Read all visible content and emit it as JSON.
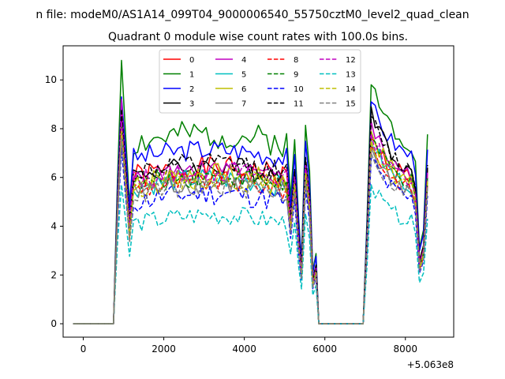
{
  "chart_data": {
    "type": "line",
    "suptitle": "n file: modeM0/AS1A14_099T04_9000006540_55750cztM0_level2_quad_clean",
    "title": "Quadrant 0 module wise count rates with 100.0s bins.",
    "xlabel": "",
    "ylabel": "",
    "x_offset_label": "+5.063e8",
    "xlim": [
      -500,
      9200
    ],
    "ylim": [
      -0.55,
      11.4
    ],
    "xticks": [
      0,
      2000,
      4000,
      6000,
      8000
    ],
    "xtick_labels": [
      "0",
      "2000",
      "4000",
      "6000",
      "8000"
    ],
    "yticks": [
      0,
      2,
      4,
      6,
      8,
      10
    ],
    "ytick_labels": [
      "0",
      "2",
      "4",
      "6",
      "8",
      "10"
    ],
    "grid": false,
    "legend_location": "upper center",
    "legend_columns": 4,
    "series": [
      {
        "name": "0",
        "color": "#ff0000",
        "style": "solid",
        "base": 6.0,
        "amp": 0.55,
        "peak1": 8.6,
        "peak2": 7.6,
        "drop": 3.6,
        "seed": 1
      },
      {
        "name": "1",
        "color": "#008000",
        "style": "solid",
        "base": 7.4,
        "amp": 0.6,
        "peak1": 10.8,
        "peak2": 9.8,
        "drop": 4.8,
        "seed": 2
      },
      {
        "name": "2",
        "color": "#0000ff",
        "style": "solid",
        "base": 6.8,
        "amp": 0.45,
        "peak1": 9.3,
        "peak2": 9.1,
        "drop": 4.6,
        "seed": 3
      },
      {
        "name": "3",
        "color": "#000000",
        "style": "solid",
        "base": 6.1,
        "amp": 0.45,
        "peak1": 8.4,
        "peak2": 8.9,
        "drop": 4.0,
        "seed": 4
      },
      {
        "name": "4",
        "color": "#c000c0",
        "style": "solid",
        "base": 5.9,
        "amp": 0.45,
        "peak1": 9.2,
        "peak2": 8.3,
        "drop": 3.8,
        "seed": 5
      },
      {
        "name": "5",
        "color": "#00bfbf",
        "style": "solid",
        "base": 5.6,
        "amp": 0.45,
        "peak1": 8.0,
        "peak2": 7.5,
        "drop": 3.6,
        "seed": 6
      },
      {
        "name": "6",
        "color": "#bfbf00",
        "style": "solid",
        "base": 5.8,
        "amp": 0.45,
        "peak1": 8.1,
        "peak2": 7.9,
        "drop": 3.7,
        "seed": 7
      },
      {
        "name": "7",
        "color": "#808080",
        "style": "solid",
        "base": 5.4,
        "amp": 0.45,
        "peak1": 7.7,
        "peak2": 7.2,
        "drop": 3.5,
        "seed": 8
      },
      {
        "name": "8",
        "color": "#ff0000",
        "style": "dashed",
        "base": 5.5,
        "amp": 0.45,
        "peak1": 7.9,
        "peak2": 7.3,
        "drop": 3.4,
        "seed": 9
      },
      {
        "name": "9",
        "color": "#008000",
        "style": "dashed",
        "base": 5.7,
        "amp": 0.45,
        "peak1": 8.2,
        "peak2": 7.7,
        "drop": 3.6,
        "seed": 10
      },
      {
        "name": "10",
        "color": "#0000ff",
        "style": "dashed",
        "base": 5.0,
        "amp": 0.5,
        "peak1": 7.2,
        "peak2": 6.8,
        "drop": 3.2,
        "seed": 11
      },
      {
        "name": "11",
        "color": "#000000",
        "style": "dashed",
        "base": 6.2,
        "amp": 0.45,
        "peak1": 8.8,
        "peak2": 8.5,
        "drop": 4.0,
        "seed": 12
      },
      {
        "name": "12",
        "color": "#c000c0",
        "style": "dashed",
        "base": 5.9,
        "amp": 0.45,
        "peak1": 8.3,
        "peak2": 7.8,
        "drop": 3.8,
        "seed": 13
      },
      {
        "name": "13",
        "color": "#00bfbf",
        "style": "dashed",
        "base": 4.1,
        "amp": 0.4,
        "peak1": 5.7,
        "peak2": 5.7,
        "drop": 2.6,
        "seed": 14
      },
      {
        "name": "14",
        "color": "#bfbf00",
        "style": "dashed",
        "base": 5.6,
        "amp": 0.45,
        "peak1": 7.9,
        "peak2": 7.5,
        "drop": 3.5,
        "seed": 15
      },
      {
        "name": "15",
        "color": "#808080",
        "style": "dashed",
        "base": 5.3,
        "amp": 0.45,
        "peak1": 7.6,
        "peak2": 7.0,
        "drop": 3.3,
        "seed": 16
      }
    ]
  }
}
